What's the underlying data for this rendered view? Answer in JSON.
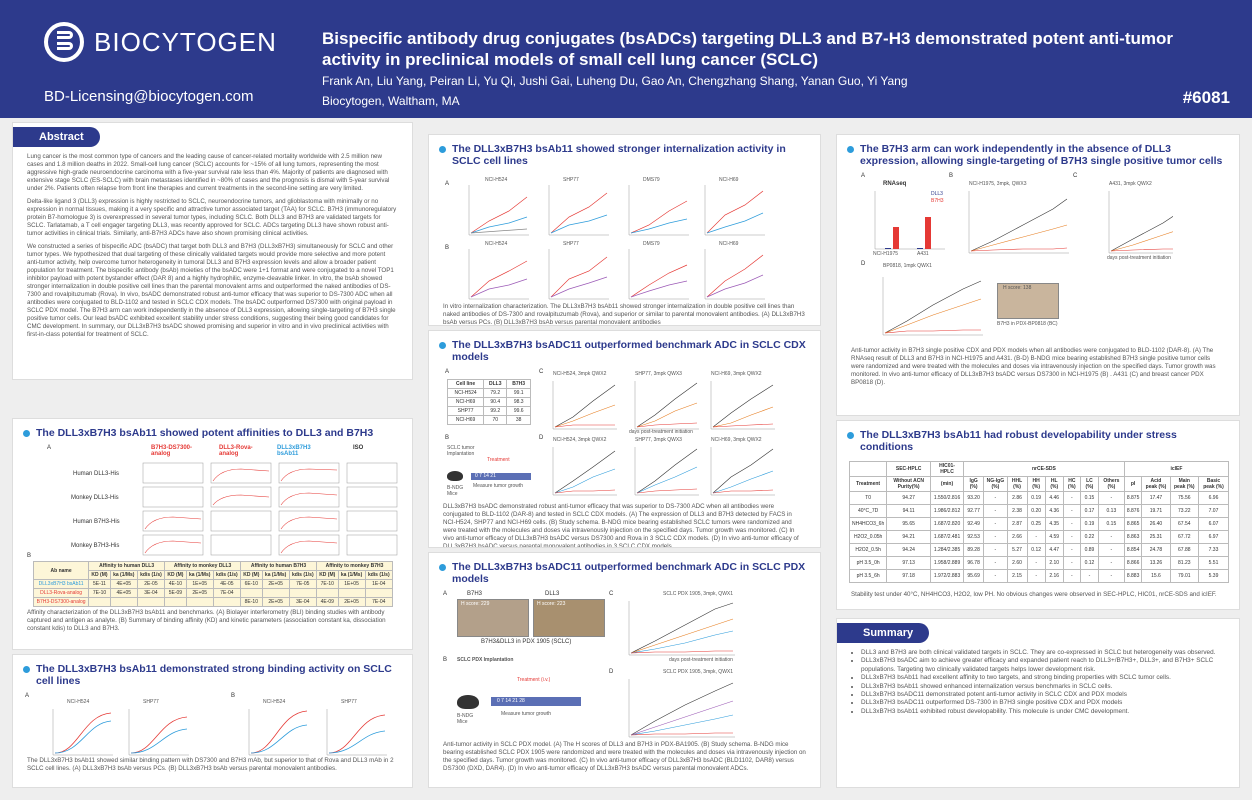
{
  "header": {
    "logo_text": "BIOCYTOGEN",
    "email": "BD-Licensing@biocytogen.com",
    "title": "Bispecific antibody drug conjugates (bsADCs) targeting DLL3 and B7-H3 demonstrated potent anti-tumor activity in preclinical models of small cell lung cancer (SCLC)",
    "authors": "Frank An, Liu Yang, Peiran Li, Yu Qi, Jushi Gai, Luheng Du, Gao An, Chengzhang Shang, Yanan Guo, Yi Yang",
    "affiliation": "Biocytogen, Waltham, MA",
    "poster_id": "#6081"
  },
  "abstract": {
    "heading": "Abstract",
    "p1": "Lung cancer is the most common type of cancers and the leading cause of cancer-related mortality worldwide with 2.5 million new cases and 1.8 million deaths in 2022. Small-cell lung cancer (SCLC) accounts for ~15% of all lung tumors, representing the most aggressive high-grade neuroendocrine carcinoma with a five-year survival rate less than 4%. Majority of patients are diagnosed with extensive stage SCLC (ES-SCLC) with brain metastases identified in ~80% of cases and the prognosis is dismal with 5-year survival under 2%. Patients often relapse from front line therapies and current treatments in the second-line setting are very limited.",
    "p2": "Delta-like ligand 3 (DLL3) expression is highly restricted to SCLC, neuroendocrine tumors, and glioblastoma with minimally or no expression in normal tissues, making it a very specific and attractive tumor associated target (TAA) for SCLC. B7H3 (immunoregulatory protein B7-homologue 3) is overexpressed in several tumor types, including SCLC. Both DLL3 and B7H3 are validated targets for SCLC. Tarlatamab, a T cell engager targeting DLL3, was recently approved for SCLC. ADCs targeting DLL3 have shown robust anti-tumor activities in clinical trials. Similarly, anti-B7H3 ADCs have also shown promising clinical activities.",
    "p3": "We constructed a series of bispecific ADC (bsADC) that target both DLL3 and B7H3 (DLL3xB7H3) simultaneously for SCLC and other tumor types. We hypothesized that dual targeting of these clinically validated targets would provide more selective and more potent anti-tumor activity, help overcome tumor heterogeneity in tumoral DLL3 and B7H3 expression levels and allow a broader patient population for treatment. The bispecific antibody (bsAb) moieties of the bsADC were 1+1 format and were conjugated to a novel TOP1 inhibitor payload with potent bystander effect (DAR 8) and a highly hydrophilic, enzyme-cleavable linker. In vitro, the bsAb showed stronger internalization in double positive cell lines than the parental monovalent arms and outperformed the naked antibodies of DS-7300 and rovalpituzumab (Rova). In vivo, bsADC demonstrated robust anti-tumor efficacy that was superior to DS-7300 ADC when all antibodies were conjugated to BLD-1102 and tested in SCLC CDX models. The bsADC outperformed DS7300 with original payload in SCLC PDX model. The B7H3 arm can work independently in the absence of DLL3 expression, allowing single-targeting of B7H3 single positive tumor cells. Our lead bsADC exhibited excellent stability under stress conditions, suggesting their being good candidates for CMC development. In summary, our DLL3xB7H3 bsADC showed promising and superior in vitro and in vivo preclinical activities with first-in-class potential for treatment of SCLC."
  },
  "affinity": {
    "heading": "The DLL3xB7H3 bsAb11 showed potent affinities to DLL3 and B7H3",
    "col_heads": [
      "B7H3-DS7300-analog",
      "DLL3-Rova-analog",
      "DLL3xB7H3 bsAb11",
      "ISO"
    ],
    "rows": [
      "Human DLL3-His",
      "Monkey DLL3-His",
      "Human B7H3-His",
      "Monkey B7H3-His"
    ],
    "label_a": "A",
    "label_b": "B",
    "table_groups": [
      "Affinity to human DLL3",
      "Affinity to monkey DLL3",
      "Affinity to human B7H3",
      "Affinity to monkey B7H3"
    ],
    "table_sub": [
      "KD (M)",
      "ka (1/Ms)",
      "kdis (1/s)"
    ],
    "table_rows": [
      {
        "name": "DLL3xB7H3 bsAb11",
        "vals": [
          "5E-11",
          "4E+05",
          "2E-05",
          "4E-10",
          "1E+05",
          "4E-05",
          "6E-10",
          "2E+05",
          "7E-05",
          "7E-10",
          "1E+05",
          "1E-04"
        ]
      },
      {
        "name": "DLL3-Rova-analog",
        "vals": [
          "7E-10",
          "4E+05",
          "3E-04",
          "5E-09",
          "2E+05",
          "7E-04",
          "",
          "",
          "",
          "",
          "",
          ""
        ]
      },
      {
        "name": "B7H3-DS7300-analog",
        "vals": [
          "",
          "",
          "",
          "",
          "",
          "",
          "8E-10",
          "2E+05",
          "3E-04",
          "4E-09",
          "2E+05",
          "7E-04"
        ]
      }
    ],
    "table_head_label": "Ab name",
    "caption": "Affinity characterization of the DLL3xB7H3 bsAb11 and benchmarks. (A) Biolayer interferometry (BLI) binding studies with antibody captured and antigen as analyte. (B) Summary of binding affinity (KD) and kinetic parameters (association constant ka, dissociation constant kdis) to DLL3 and B7H3."
  },
  "binding": {
    "heading": "The DLL3xB7H3 bsAb11 demonstrated strong binding activity on SCLC cell lines",
    "label_a": "A",
    "label_b": "B",
    "panels": [
      "NCI-H524",
      "SHP77",
      "NCI-H524",
      "SHP77"
    ],
    "caption": "The DLL3xB7H3 bsAb11 showed similar binding pattern with DS7300 and B7H3 mAb, but superior to that of Rova and DLL3 mAb in 2 SCLC cell lines. (A) DLL3xB7H3 bsAb versus PCs. (B) DLL3xB7H3 bsAb versus parental monovalent antibodies."
  },
  "internalization": {
    "heading": "The DLL3xB7H3 bsAb11 showed stronger internalization activity in SCLC cell lines",
    "label_a": "A",
    "label_b": "B",
    "panels_a": [
      "NCI-H524",
      "SHP77",
      "DMS79",
      "NCI-H69"
    ],
    "panels_b": [
      "NCI-H524",
      "SHP77",
      "DMS79",
      "NCI-H69"
    ],
    "x_label": "Incubation Time (h)",
    "caption": "In vitro internalization characterization. The DLL3xB7H3 bsAb11 showed stronger internalization in double positive cell lines than naked antibodies of DS-7300 and rovalpituzumab (Rova), and superior or similar to parental monovalent antibodies. (A) DLL3xB7H3 bsAb versus PCs. (B) DLL3xB7H3 bsAb versus parental monovalent antibodies"
  },
  "cdx": {
    "heading": "The DLL3xB7H3 bsADC11 outperformed benchmark ADC in SCLC CDX models",
    "label_a": "A",
    "label_b": "B",
    "label_c": "C",
    "label_d": "D",
    "table_head": [
      "Cell line",
      "Sample (%)",
      "DLL3",
      "B7H3"
    ],
    "table_rows": [
      [
        "NCI-H524",
        "79.2",
        "99.1"
      ],
      [
        "NCI-H69",
        "90.4",
        "98.3"
      ],
      [
        "SHP77",
        "99.2",
        "99.6"
      ],
      [
        "NCI-H69",
        "70",
        "38"
      ]
    ],
    "schema_title": "SCLC tumor Implantation",
    "schema_treat": "Treatment",
    "schema_days": "0  7  14  21",
    "schema_measure": "Measure tumor growth",
    "mice": "B-NDG Mice",
    "charts_c": [
      "NCI-H524, 3mpk QWX2",
      "SHP77, 3mpk QWX3",
      "NCI-H69, 3mpk QWX2"
    ],
    "charts_d": [
      "NCI-H524, 3mpk QWX2",
      "SHP77, 3mpk QWX3",
      "NCI-H69, 3mpk QWX2"
    ],
    "x_label": "days post-treatment initiation",
    "caption": "DLL3xB7H3 bsADC demonstrated robust anti-tumor efficacy that was superior to DS-7300 ADC when all antibodies were conjugated to BLD-1102 (DAR-8) and tested in SCLC CDX models. (A) The expression of DLL3 and B7H3 detected by FACS in NCI-H524, SHP77 and NCI-H69 cells. (B) Study schema. B-NDG mice bearing established SCLC tumors were randomized and were treated with the molecules and doses via intravenously injection on the specified days. Tumor growth was monitored. (C) In vivo anti-tumor efficacy of DLL3xB7H3 bsADC versus DS7300 and Rova in 3 SCLC CDX models. (D) In vivo anti-tumor efficacy of DLL3xB7H3 bsADC versus parental monovalent antibodies in 3 SCLC CDX models"
  },
  "pdx": {
    "heading": "The DLL3xB7H3 bsADC11 outperformed benchmark ADC in SCLC PDX models",
    "label_a": "A",
    "label_b": "B",
    "label_c": "C",
    "label_d": "D",
    "ihc_b7h3": "B7H3",
    "ihc_dll3": "DLL3",
    "hscore_b7h3": "H score: 229",
    "hscore_dll3": "H score: 223",
    "ihc_caption": "B7H3&DLL3 in PDX 1905 (SCLC)",
    "schema_title": "SCLC PDX Implantation",
    "schema_treat": "Treatment (i.v.)",
    "schema_days": "0  7  14  21  28",
    "schema_measure": "Measure tumor growth",
    "mice": "B-NDG Mice",
    "chart_c": "SCLC PDX 1905, 3mpk, QWX1",
    "chart_d": "SCLC PDX 1905, 3mpk, QWX1",
    "x_label": "days post-treatment initiation",
    "caption": "Anti-tumor activity in SCLC PDX model. (A) The H scores of DLL3 and B7H3 in PDX-BA1905. (B) Study schema. B-NDG mice bearing established SCLC PDX 1905 were randomized and were treated with the molecules and doses via intravenously injection on the specified days. Tumor growth was monitored. (C) In vivo anti-tumor efficacy of DLL3xB7H3 bsADC (BLD1102, DAR8) versus DS7300 (DXD, DAR4). (D) In vivo anti-tumor efficacy of DLL3xB7H3 bsADC versus parental monovalent ADCs."
  },
  "b7h3arm": {
    "heading": "The B7H3 arm can work independently in the absence of DLL3 expression, allowing single-targeting of B7H3 single positive tumor cells",
    "label_a": "A",
    "label_b": "B",
    "label_c": "C",
    "label_d": "D",
    "rnaseq_title": "RNAseq",
    "legend": [
      "DLL3",
      "B7H3"
    ],
    "cats": [
      "NCI-H1975",
      "A431"
    ],
    "chart_b": "NCI-H1975, 3mpk, QWX3",
    "chart_c": "A431, 3mpk QWX2",
    "chart_d": "BP0818, 1mpk QWX1",
    "hscore": "H score: 138",
    "ihc_caption": "B7H3 in PDX-BP0818 (BC)",
    "x_label": "days post-treatment initiation",
    "caption": "Anti-tumor activity in B7H3 single positive CDX and PDX models when all antibodies were conjugated to BLD-1102 (DAR-8). (A) The RNAseq result of DLL3 and B7H3 in NCI-H1975 and A431. (B-D) B-NDG mice bearing established B7H3 single positive tumor cells were randomized and were treated with the molecules and doses via intravenously injection on the specified days. Tumor growth was monitored. In vivo anti-tumor efficacy of DLL3xB7H3 bsADC versus DS7300 in NCI-H1975 (B) . A431 (C) and breast cancer PDX BP0818 (D)."
  },
  "developability": {
    "heading": "The DLL3xB7H3 bsAb11 had robust developability under stress conditions",
    "groups": [
      "SEC-HPLC",
      "HIC01-HPLC",
      "nrCE-SDS",
      "icIEF"
    ],
    "cols": [
      "Treatment",
      "Without ACN Purity(%)",
      "(min)",
      "IgG (%)",
      "NG-IgG (%)",
      "HHL (%)",
      "HH (%)",
      "HL (%)",
      "HC (%)",
      "LC (%)",
      "Others (%)",
      "pI",
      "Acid peak (%)",
      "Main peak (%)",
      "Basic peak (%)"
    ],
    "rows": [
      [
        "T0",
        "94.27",
        "1.550/2.816",
        "93.20",
        "-",
        "2.86",
        "0.19",
        "4.46",
        "-",
        "0.15",
        "-",
        "8.875",
        "17.47",
        "75.56",
        "6.96"
      ],
      [
        "40°C_7D",
        "94.11",
        "1.986/2.812",
        "92.77",
        "-",
        "2.38",
        "0.20",
        "4.36",
        "-",
        "0.17",
        "0.13",
        "8.876",
        "19.71",
        "73.22",
        "7.07"
      ],
      [
        "NH4HCO3_6h",
        "95.65",
        "1.687/2.820",
        "92.49",
        "-",
        "2.87",
        "0.25",
        "4.35",
        "-",
        "0.19",
        "0.15",
        "8.865",
        "26.40",
        "67.54",
        "6.07"
      ],
      [
        "H2O2_0.05h",
        "94.21",
        "1.687/2.481",
        "92.53",
        "-",
        "2.66",
        "-",
        "4.59",
        "-",
        "0.22",
        "-",
        "8.863",
        "25.31",
        "67.72",
        "6.97"
      ],
      [
        "H2O2_0.5h",
        "94.24",
        "1.284/2.385",
        "89.28",
        "-",
        "5.27",
        "0.12",
        "4.47",
        "-",
        "0.89",
        "-",
        "8.854",
        "24.78",
        "67.88",
        "7.33"
      ],
      [
        "pH 3.5_0h",
        "97.13",
        "1.958/2.889",
        "96.78",
        "-",
        "2.60",
        "-",
        "2.10",
        "-",
        "0.12",
        "-",
        "8.866",
        "13.26",
        "81.23",
        "5.51"
      ],
      [
        "pH 3.5_6h",
        "97.18",
        "1.972/2.883",
        "95.69",
        "-",
        "2.15",
        "-",
        "2.16",
        "-",
        "-",
        "-",
        "8.883",
        "15.6",
        "79.01",
        "5.39"
      ]
    ],
    "caption": "Stability test under 40°C, NH4HCO3, H2O2, low PH. No obvious changes were observed in SEC-HPLC, HIC01, nrCE-SDS and icIEF."
  },
  "summary": {
    "heading": "Summary",
    "items": [
      "DLL3 and B7H3 are both clinical validated targets in SCLC. They are co-expressed in SCLC but heterogeneity was observed.",
      "DLL3xB7H3 bsADC aim to achieve greater efficacy and expanded patient reach to DLL3+/B7H3+, DLL3+, and B7H3+ SCLC populations. Targeting two clinically validated targets helps lower development risk.",
      "DLL3xB7H3 bsAb11 had excellent affinity to two targets, and strong binding properties with SCLC tumor cells.",
      "DLL3xB7H3 bsAb11 showed enhanced internalization versus benchmarks in SCLC cells.",
      "DLL3xB7H3 bsADC11 demonstrated potent anti-tumor activity in SCLC CDX and PDX models",
      "DLL3xB7H3 bsADC11 outperformed DS-7300 in B7H3 single positive CDX and PDX models",
      "DLL3xB7H3 bsAb11 exhibited robust developability. This molecule is under CMC development."
    ]
  },
  "colors": {
    "brand": "#2d3a8c",
    "accent": "#2d9cdb",
    "red": "#e53935"
  }
}
